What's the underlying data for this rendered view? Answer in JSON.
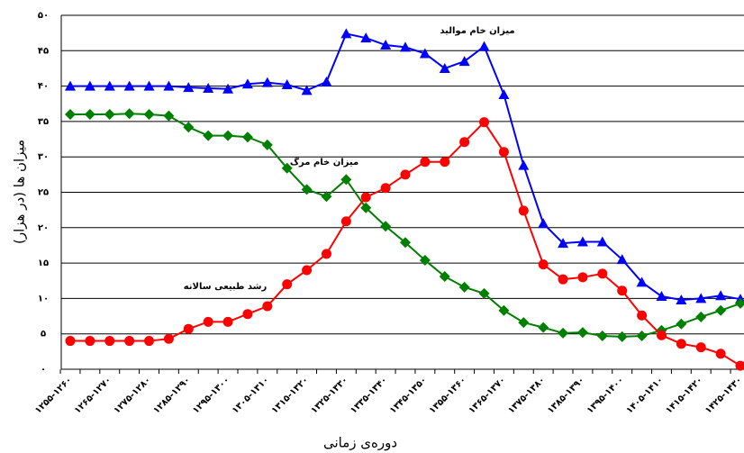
{
  "chart_data": {
    "type": "line",
    "y_label": "میزان ها (در هزار)",
    "x_label": "دوره‌ی زمانی",
    "categories": [
      "۱۲۵۵-۱۲۶۰",
      null,
      "۱۲۶۵-۱۲۷۰",
      null,
      "۱۲۷۵-۱۲۸۰",
      null,
      "۱۲۸۵-۱۲۹۰",
      null,
      "۱۲۹۵-۱۳۰۰",
      null,
      "۱۳۰۵-۱۳۱۰",
      null,
      "۱۳۱۵-۱۳۲۰",
      null,
      "۱۳۲۵-۱۳۳۰",
      null,
      "۱۳۳۵-۱۳۴۰",
      null,
      "۱۳۴۵-۱۳۵۰",
      null,
      "۱۳۵۵-۱۳۶۰",
      null,
      "۱۳۶۵-۱۳۷۰",
      null,
      "۱۳۷۵-۱۳۸۰",
      null,
      "۱۳۸۵-۱۳۹۰",
      null,
      "۱۳۹۵-۱۴۰۰",
      null,
      "۱۴۰۵-۱۴۱۰",
      null,
      "۱۴۱۵-۱۴۲۰",
      null,
      "۱۴۲۵-۱۴۳۰"
    ],
    "series": [
      {
        "name": "میزان خام موالید",
        "color": "#0000ff",
        "marker": "triangle",
        "values": [
          40,
          40,
          40,
          40,
          40,
          40,
          39.8,
          39.7,
          39.6,
          40.3,
          40.5,
          40.2,
          39.4,
          40.6,
          47.4,
          46.8,
          45.8,
          45.5,
          44.6,
          42.5,
          43.5,
          45.6,
          38.8,
          28.8,
          20.6,
          17.8,
          18,
          18,
          15.5,
          12.3,
          10.3,
          9.8,
          10,
          10.4,
          9.9
        ]
      },
      {
        "name": "میزان خام مرگ",
        "color": "#008000",
        "marker": "diamond",
        "values": [
          36,
          36,
          36,
          36.1,
          36,
          35.8,
          34.2,
          33,
          33,
          32.8,
          31.7,
          28.4,
          25.4,
          24.4,
          26.8,
          22.8,
          20.2,
          17.9,
          15.4,
          13.1,
          11.6,
          10.7,
          8.3,
          6.6,
          5.9,
          5.1,
          5.2,
          4.7,
          4.6,
          4.7,
          5.5,
          6.4,
          7.4,
          8.3,
          9.3
        ]
      },
      {
        "name": "رشد طبیعی سالانه",
        "color": "#ff0000",
        "marker": "circle",
        "values": [
          4,
          4,
          4,
          4,
          4,
          4.3,
          5.7,
          6.7,
          6.7,
          7.8,
          8.9,
          12,
          14,
          16.3,
          20.9,
          24.3,
          25.6,
          27.5,
          29.3,
          29.3,
          32.1,
          34.9,
          30.7,
          22.4,
          14.8,
          12.7,
          13,
          13.5,
          11.1,
          7.6,
          4.8,
          3.6,
          3.1,
          2.2,
          0.5
        ]
      }
    ],
    "ylim": [
      0,
      50
    ],
    "yticks": [
      {
        "value": 0,
        "label": "۰"
      },
      {
        "value": 5,
        "label": "۵"
      },
      {
        "value": 10,
        "label": "۱۰"
      },
      {
        "value": 15,
        "label": "۱۵"
      },
      {
        "value": 20,
        "label": "۲۰"
      },
      {
        "value": 25,
        "label": "۲۵"
      },
      {
        "value": 30,
        "label": "۳۰"
      },
      {
        "value": 35,
        "label": "۳۵"
      },
      {
        "value": 40,
        "label": "۴۰"
      },
      {
        "value": 45,
        "label": "۴۵"
      },
      {
        "value": 50,
        "label": "۵۰"
      }
    ],
    "grid": true
  }
}
